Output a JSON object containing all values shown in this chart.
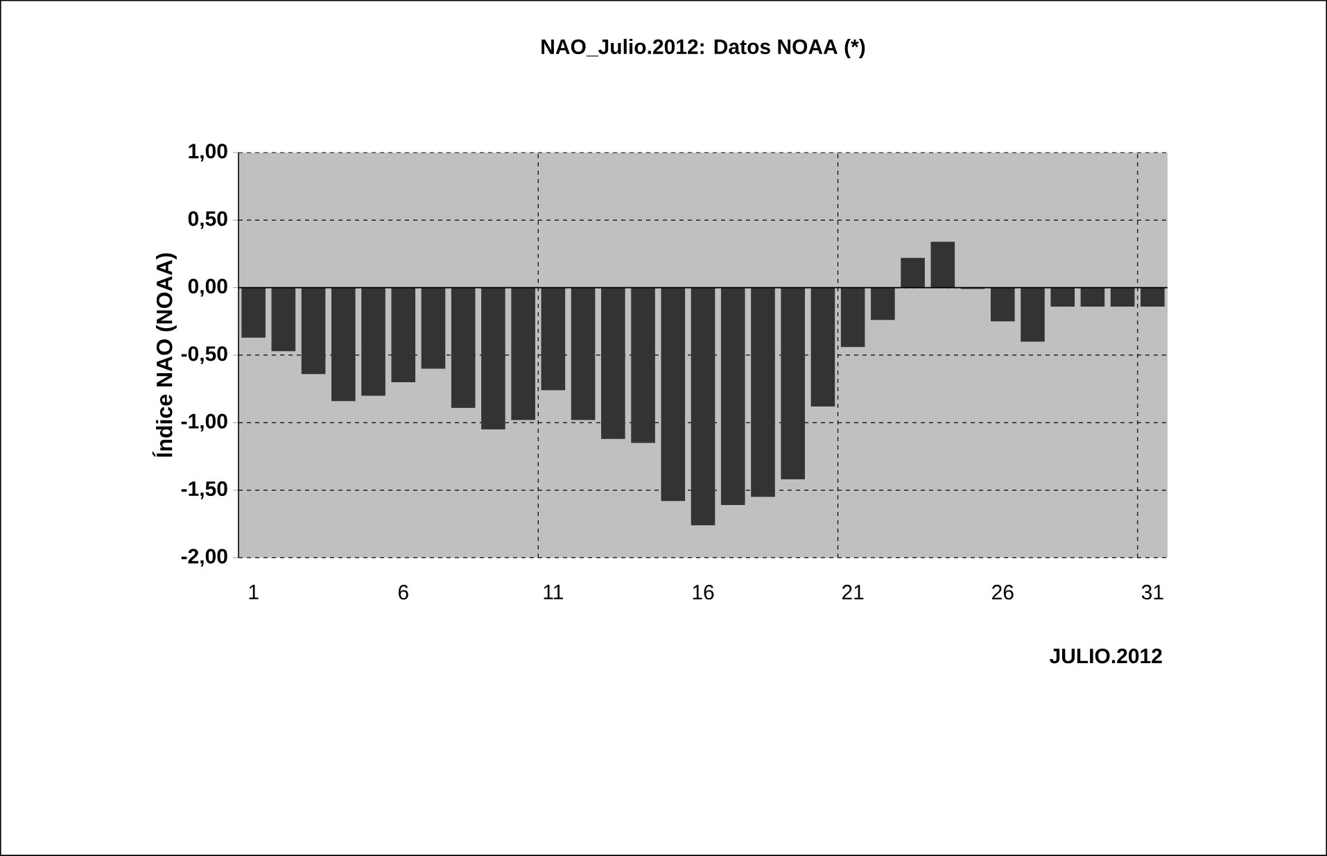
{
  "chart_data": {
    "type": "bar",
    "title": "NAO_Julio.2012: Datos NOAA (*)",
    "xlabel": "JULIO.2012",
    "ylabel": "Índice NAO (NOAA)",
    "categories": [
      "1",
      null,
      null,
      null,
      null,
      "6",
      null,
      null,
      null,
      null,
      "11",
      null,
      null,
      null,
      null,
      "16",
      null,
      null,
      null,
      null,
      "21",
      null,
      null,
      null,
      null,
      "26",
      null,
      null,
      null,
      null,
      "31"
    ],
    "values": [
      -0.37,
      -0.47,
      -0.64,
      -0.84,
      -0.8,
      -0.7,
      -0.6,
      -0.89,
      -1.05,
      -0.98,
      -0.76,
      -0.98,
      -1.12,
      -1.15,
      -1.58,
      -1.76,
      -1.61,
      -1.55,
      -1.42,
      -0.88,
      -0.44,
      -0.24,
      0.22,
      0.34,
      -0.01,
      -0.25,
      -0.4,
      -0.14,
      -0.14,
      -0.14,
      -0.14
    ],
    "color": "#333333",
    "ylim": [
      -2,
      1
    ],
    "yticks": [
      {
        "value": -2,
        "label": "-2,00"
      },
      {
        "value": -1.5,
        "label": "-1,50"
      },
      {
        "value": -1,
        "label": "-1,00"
      },
      {
        "value": -0.5,
        "label": "-0,50"
      },
      {
        "value": 0,
        "label": "0,00"
      },
      {
        "value": 0.5,
        "label": "0,50"
      },
      {
        "value": 1,
        "label": "1,00"
      }
    ],
    "grid": true
  }
}
